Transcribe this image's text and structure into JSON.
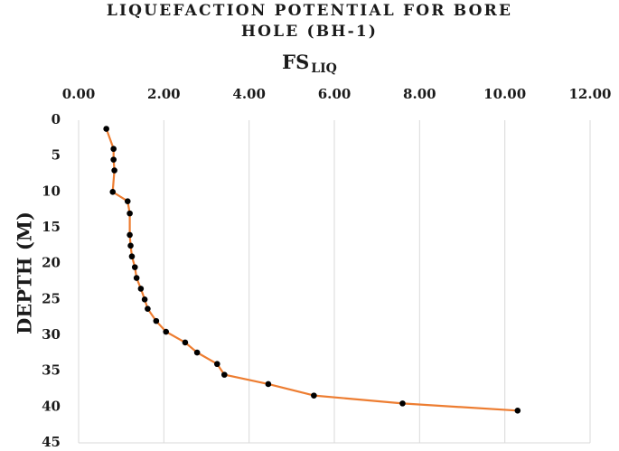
{
  "chart_data": {
    "type": "line",
    "title_line1": "LIQUEFACTION POTENTIAL FOR BORE",
    "title_line2": "HOLE (BH-1)",
    "xlabel_main": "FS",
    "xlabel_sub": "LIQ",
    "ylabel": "DEPTH (M)",
    "xlim": [
      0,
      12
    ],
    "ylim": [
      0,
      45
    ],
    "y_inverted": true,
    "x_axis_position": "top",
    "xticks": [
      "0.00",
      "2.00",
      "4.00",
      "6.00",
      "8.00",
      "10.00",
      "12.00"
    ],
    "xtick_values": [
      0,
      2,
      4,
      6,
      8,
      10,
      12
    ],
    "yticks": [
      "0",
      "5",
      "10",
      "15",
      "20",
      "25",
      "30",
      "35",
      "40",
      "45"
    ],
    "ytick_values": [
      0,
      5,
      10,
      15,
      20,
      25,
      30,
      35,
      40,
      45
    ],
    "grid_x": true,
    "grid_y": false,
    "line_color": "#ed7d31",
    "marker_color": "#000000",
    "series": [
      {
        "x": [
          0.65,
          0.82,
          0.82,
          0.84,
          0.8,
          1.15,
          1.2,
          1.2,
          1.22,
          1.25,
          1.32,
          1.36,
          1.46,
          1.55,
          1.62,
          1.82,
          2.05,
          2.5,
          2.78,
          3.25,
          3.42,
          4.45,
          5.52,
          7.6,
          10.3
        ],
        "y": [
          1.2,
          4.0,
          5.5,
          7.0,
          10.0,
          11.3,
          13.0,
          16.0,
          17.5,
          19.0,
          20.5,
          22.0,
          23.5,
          25.0,
          26.3,
          28.0,
          29.5,
          31.0,
          32.4,
          34.0,
          35.5,
          36.8,
          38.4,
          39.5,
          40.5
        ]
      }
    ]
  }
}
